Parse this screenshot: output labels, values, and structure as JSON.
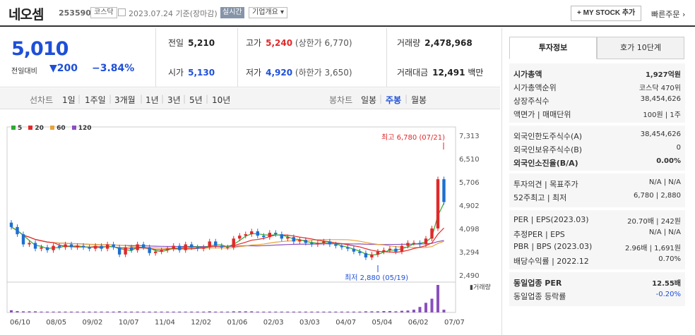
{
  "header": {
    "name": "네오셈",
    "code": "253590",
    "market": "코스닥",
    "date": "2023.07.24 기준(장마감)",
    "realtime": "실시간",
    "company": "기업개요",
    "mystock": "+ MY STOCK 추가",
    "quick_order": "빠른주문"
  },
  "price": {
    "current": "5,010",
    "change_label": "전일대비",
    "change": "▼200",
    "change_pct": "−3.84%",
    "prev_label": "전일",
    "prev": "5,210",
    "open_label": "시가",
    "open": "5,130",
    "high_label": "고가",
    "high": "5,240",
    "upper_limit": "(상한가 6,770)",
    "low_label": "저가",
    "low": "4,920",
    "lower_limit": "(하한가 3,650)",
    "volume_label": "거래량",
    "volume": "2,478,968",
    "amount_label": "거래대금",
    "amount": "12,491",
    "amount_unit": "백만"
  },
  "period_tabs": {
    "line_label": "선차트",
    "line": [
      "1일",
      "1주일",
      "3개월",
      "1년",
      "3년",
      "5년",
      "10년"
    ],
    "candle_label": "봉차트",
    "candle": [
      "일봉",
      "주봉",
      "월봉"
    ],
    "candle_selected": "주봉"
  },
  "chart_data": {
    "type": "candlestick",
    "legend": [
      "5",
      "20",
      "60",
      "120"
    ],
    "colors": {
      "ma5": "#2faa2f",
      "ma20": "#e0292a",
      "ma60": "#e8a23a",
      "ma120": "#8a4fbf",
      "up": "#e0292a",
      "down": "#1e6fd0"
    },
    "y_ticks": [
      "7,313",
      "6,510",
      "5,706",
      "4,902",
      "4,098",
      "3,294",
      "2,490"
    ],
    "y_range": [
      2490,
      7313
    ],
    "x_labels": [
      "06/10",
      "08/05",
      "09/02",
      "10/07",
      "11/04",
      "12/02",
      "01/06",
      "02/03",
      "03/03",
      "04/07",
      "05/04",
      "06/02",
      "07/07"
    ],
    "max_label": "최고 6,780 (07/21)",
    "min_label": "최저 2,880 (05/19)",
    "volume_label": "거래량",
    "closes": [
      4150,
      3900,
      3550,
      3600,
      3400,
      3450,
      3350,
      3500,
      3450,
      3550,
      3450,
      3500,
      3450,
      3400,
      3500,
      3400,
      3550,
      3450,
      3200,
      3450,
      3350,
      3550,
      3450,
      3250,
      3300,
      3350,
      3400,
      3500,
      3350,
      3550,
      3450,
      3400,
      3450,
      3650,
      3500,
      3450,
      3450,
      3750,
      3850,
      3900,
      4000,
      3850,
      3800,
      3950,
      3900,
      3750,
      3800,
      3650,
      3700,
      3600,
      3550,
      3600,
      3650,
      3550,
      3500,
      3450,
      3400,
      3300,
      3250,
      3100,
      3200,
      3300,
      3350,
      3400,
      3300,
      3500,
      3600,
      3600,
      3550,
      3750,
      4100,
      5800,
      5010
    ],
    "volumes": [
      0.08,
      0.05,
      0.04,
      0.04,
      0.04,
      0.03,
      0.03,
      0.03,
      0.03,
      0.03,
      0.03,
      0.03,
      0.03,
      0.03,
      0.03,
      0.03,
      0.03,
      0.03,
      0.04,
      0.03,
      0.03,
      0.03,
      0.03,
      0.03,
      0.03,
      0.03,
      0.03,
      0.03,
      0.03,
      0.03,
      0.03,
      0.03,
      0.03,
      0.04,
      0.03,
      0.03,
      0.03,
      0.04,
      0.04,
      0.04,
      0.04,
      0.03,
      0.03,
      0.03,
      0.03,
      0.03,
      0.03,
      0.03,
      0.03,
      0.03,
      0.03,
      0.03,
      0.03,
      0.03,
      0.03,
      0.03,
      0.03,
      0.03,
      0.03,
      0.04,
      0.04,
      0.04,
      0.05,
      0.05,
      0.04,
      0.06,
      0.07,
      0.1,
      0.2,
      0.35,
      0.5,
      1.0,
      0.1
    ]
  },
  "right": {
    "tab1": "투자정보",
    "tab2": "호가 10단계",
    "sec1": [
      {
        "l": "시가총액",
        "r": "1,927억원",
        "b": true
      },
      {
        "l": "시가총액순위",
        "r": "코스닥 470위"
      },
      {
        "l": "상장주식수",
        "r": "38,454,626"
      },
      {
        "l": "액면가 | 매매단위",
        "r": "100원 | 1주"
      }
    ],
    "sec2": [
      {
        "l": "외국인한도주식수(A)",
        "r": "38,454,626"
      },
      {
        "l": "외국인보유주식수(B)",
        "r": "0"
      },
      {
        "l": "외국인소진율(B/A)",
        "r": "0.00%",
        "b": true
      }
    ],
    "sec3": [
      {
        "l": "투자의견 | 목표주가",
        "r": "N/A | N/A"
      },
      {
        "l": "52주최고 | 최저",
        "r": "6,780 | 2,880"
      }
    ],
    "sec4": [
      {
        "l": "PER | EPS(2023.03)",
        "r": "20.70배 | 242원"
      },
      {
        "l": "추정PER | EPS",
        "r": "N/A | N/A"
      },
      {
        "l": "PBR | BPS (2023.03)",
        "r": "2.96배 | 1,691원"
      },
      {
        "l": "배당수익률 | 2022.12",
        "r": "0.70%"
      }
    ],
    "sec5": [
      {
        "l": "동일업종 PER",
        "r": "12.55배",
        "b": true
      },
      {
        "l": "동일업종 등락률",
        "r": "-0.20%",
        "blue": true
      }
    ]
  }
}
